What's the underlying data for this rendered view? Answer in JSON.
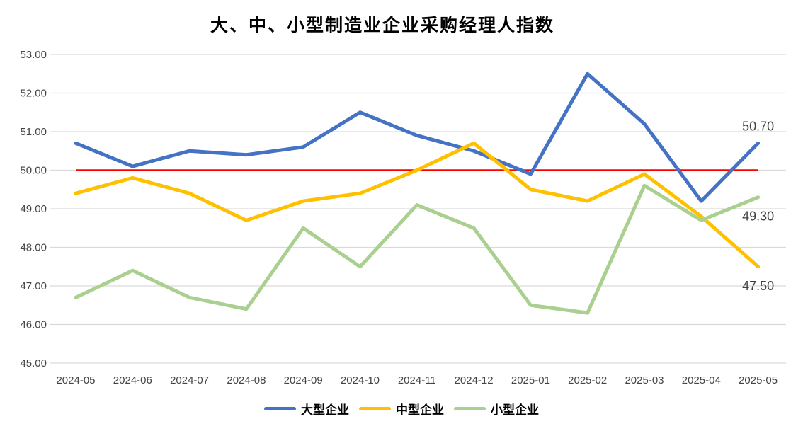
{
  "title": "大、中、小型制造业企业采购经理人指数",
  "chart_data": {
    "type": "line",
    "title": "大、中、小型制造业企业采购经理人指数",
    "categories": [
      "2024-05",
      "2024-06",
      "2024-07",
      "2024-08",
      "2024-09",
      "2024-10",
      "2024-11",
      "2024-12",
      "2025-01",
      "2025-02",
      "2025-03",
      "2025-04",
      "2025-05"
    ],
    "series": [
      {
        "name": "大型企业",
        "color": "#4472C4",
        "values": [
          50.7,
          50.1,
          50.5,
          50.4,
          50.6,
          51.5,
          50.9,
          50.5,
          49.9,
          52.5,
          51.2,
          49.2,
          50.7
        ],
        "end_label": "50.70",
        "end_label_position": "above"
      },
      {
        "name": "中型企业",
        "color": "#FFC000",
        "values": [
          49.4,
          49.8,
          49.4,
          48.7,
          49.2,
          49.4,
          50.0,
          50.7,
          49.5,
          49.2,
          49.9,
          48.8,
          47.5
        ],
        "end_label": "47.50",
        "end_label_position": "below"
      },
      {
        "name": "小型企业",
        "color": "#A9D08E",
        "values": [
          46.7,
          47.4,
          46.7,
          46.4,
          48.5,
          47.5,
          49.1,
          48.5,
          46.5,
          46.3,
          49.6,
          48.7,
          49.3
        ],
        "end_label": "49.30",
        "end_label_position": "below"
      }
    ],
    "reference_line": {
      "value": 50.0,
      "color": "#FF0000"
    },
    "ylim": [
      45,
      53
    ],
    "ytick_step": 1,
    "ytick_labels": [
      "45.00",
      "46.00",
      "47.00",
      "48.00",
      "49.00",
      "50.00",
      "51.00",
      "52.00",
      "53.00"
    ],
    "grid": true,
    "gridline_color": "#D9D9D9",
    "axis_label_color": "#444444",
    "data_label_color": "#404040",
    "legend_position": "bottom"
  }
}
